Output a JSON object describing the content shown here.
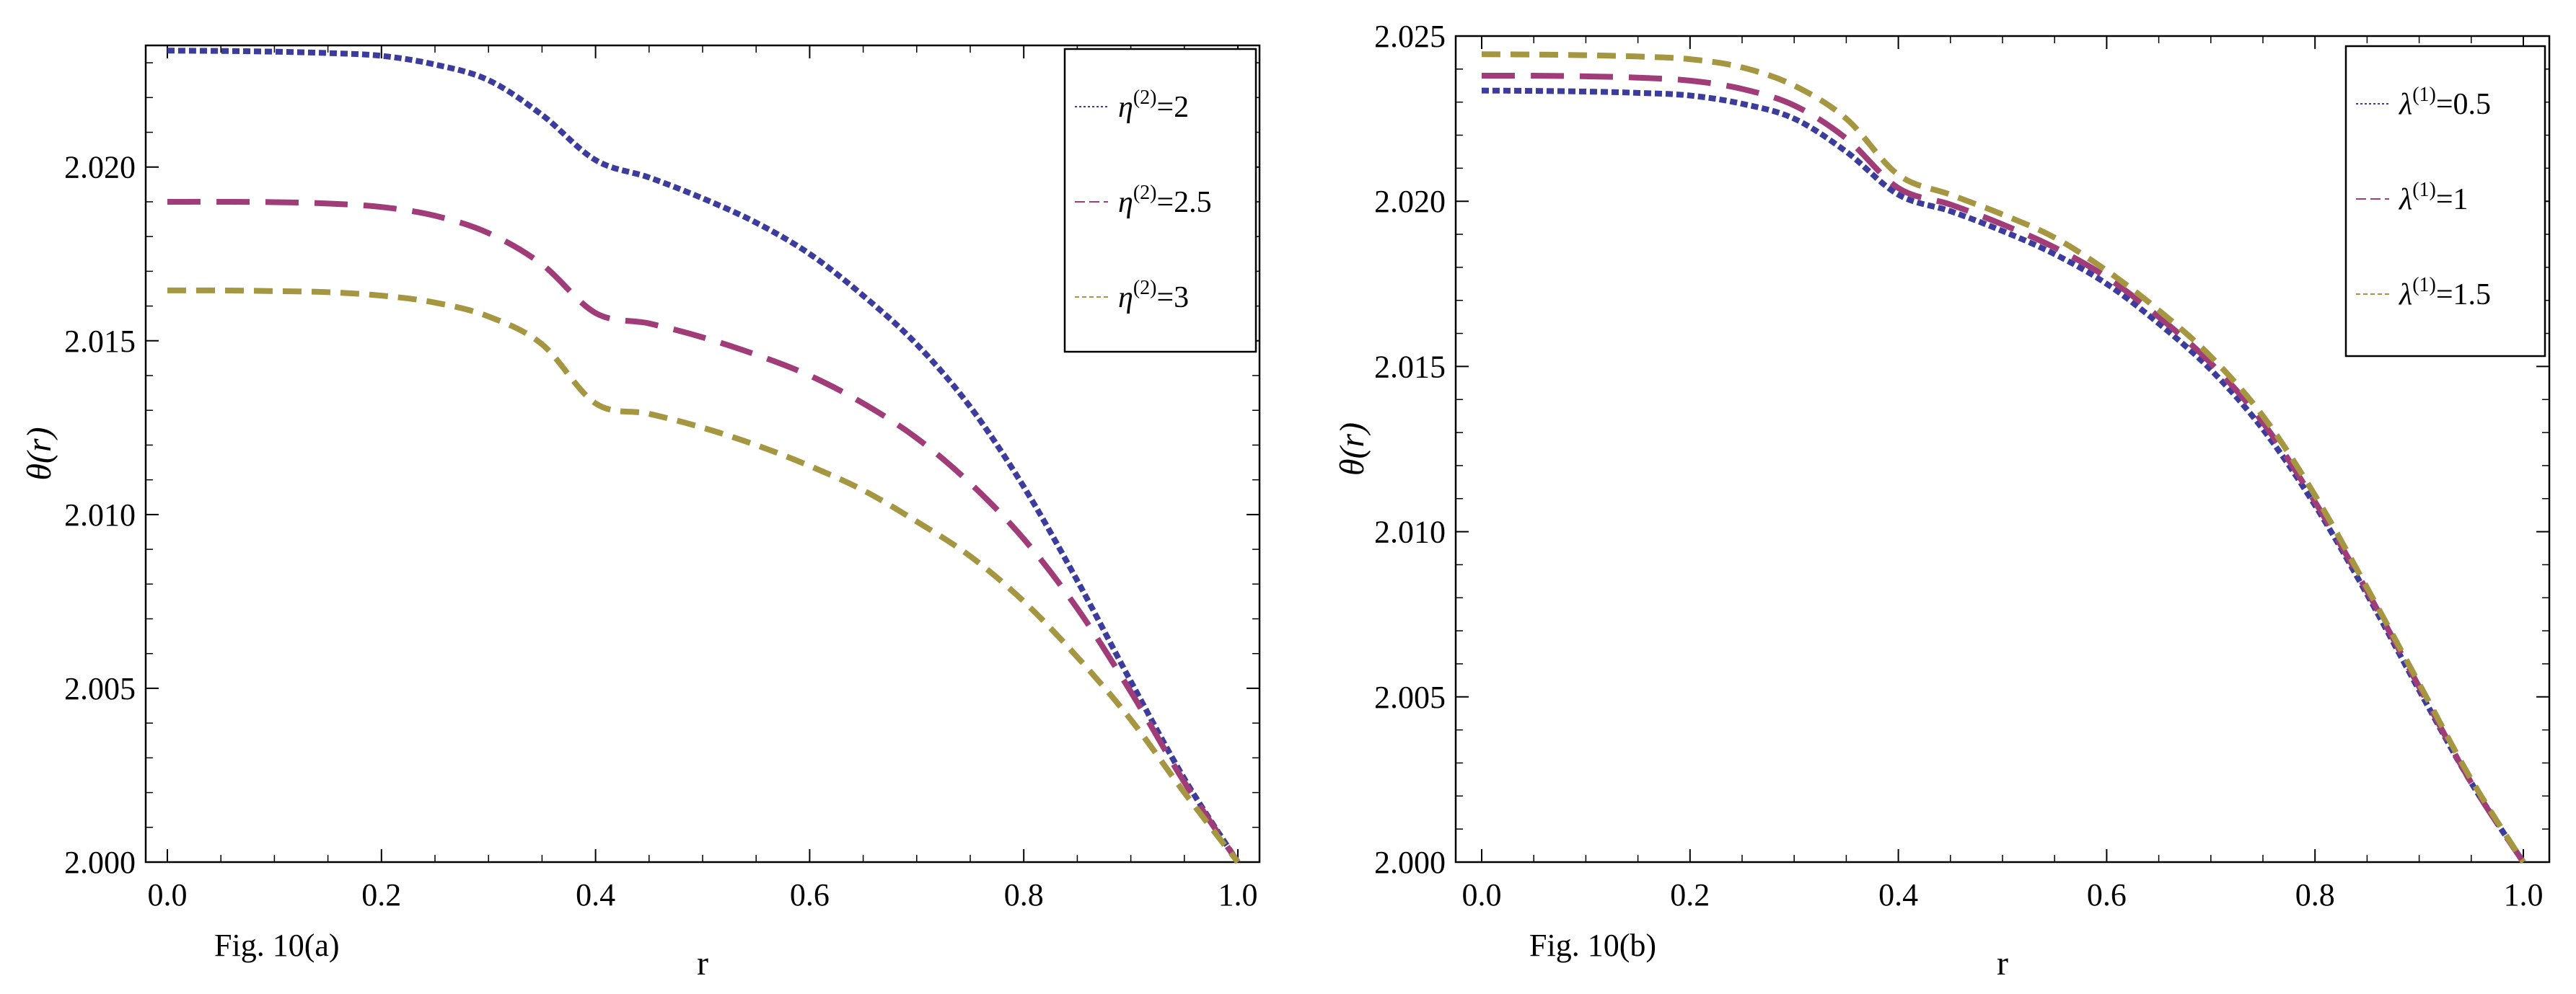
{
  "chart_data": [
    {
      "type": "line",
      "caption": "Fig. 10(a)",
      "xlabel": "r",
      "ylabel": "θ(r)",
      "xlim": [
        0,
        1
      ],
      "ylim": [
        2.0,
        2.0235
      ],
      "xticks": [
        0.0,
        0.2,
        0.4,
        0.6,
        0.8,
        1.0
      ],
      "xtick_labels": [
        "0.0",
        "0.2",
        "0.4",
        "0.6",
        "0.8",
        "1.0"
      ],
      "yticks": [
        2.0,
        2.005,
        2.01,
        2.015,
        2.02
      ],
      "ytick_labels": [
        "2.000",
        "2.005",
        "2.010",
        "2.015",
        "2.020"
      ],
      "legend_position": "top-right",
      "series": [
        {
          "name": "η(2)=2",
          "label_main": "η",
          "label_sup": "(2)",
          "label_rest": "=2",
          "color": "#3c3c9c",
          "dash": "short",
          "x": [
            0,
            0.05,
            0.1,
            0.15,
            0.2,
            0.25,
            0.3,
            0.35,
            0.4,
            0.45,
            0.5,
            0.55,
            0.6,
            0.65,
            0.7,
            0.75,
            0.8,
            0.85,
            0.9,
            0.95,
            1.0
          ],
          "y": [
            2.02335,
            2.02334,
            2.02332,
            2.02328,
            2.0232,
            2.02295,
            2.0225,
            2.0215,
            2.0202,
            2.0197,
            2.0191,
            2.0184,
            2.0175,
            2.0163,
            2.0149,
            2.0131,
            2.0108,
            2.0081,
            2.0052,
            2.0024,
            2.0
          ]
        },
        {
          "name": "η(2)=2.5",
          "label_main": "η",
          "label_sup": "(2)",
          "label_rest": "=2.5",
          "color": "#a03c78",
          "dash": "long",
          "x": [
            0,
            0.05,
            0.1,
            0.15,
            0.2,
            0.25,
            0.3,
            0.35,
            0.4,
            0.45,
            0.5,
            0.55,
            0.6,
            0.65,
            0.7,
            0.75,
            0.8,
            0.85,
            0.9,
            0.95,
            1.0
          ],
          "y": [
            2.019,
            2.019,
            2.01899,
            2.01895,
            2.01885,
            2.0186,
            2.0181,
            2.0172,
            2.0158,
            2.0155,
            2.0151,
            2.0146,
            2.014,
            2.0132,
            2.0122,
            2.0109,
            2.0093,
            2.0073,
            2.0049,
            2.0023,
            2.0
          ]
        },
        {
          "name": "η(2)=3",
          "label_main": "η",
          "label_sup": "(2)",
          "label_rest": "=3",
          "color": "#a59641",
          "dash": "medium",
          "x": [
            0,
            0.05,
            0.1,
            0.15,
            0.2,
            0.25,
            0.3,
            0.35,
            0.4,
            0.45,
            0.5,
            0.55,
            0.6,
            0.65,
            0.7,
            0.75,
            0.8,
            0.85,
            0.9,
            0.95,
            1.0
          ],
          "y": [
            2.01645,
            2.01645,
            2.01643,
            2.0164,
            2.0163,
            2.0161,
            2.0157,
            2.0149,
            2.0132,
            2.0129,
            2.0125,
            2.012,
            2.0114,
            2.0107,
            2.0098,
            2.0088,
            2.0075,
            2.0059,
            2.0041,
            2.002,
            2.0
          ]
        }
      ]
    },
    {
      "type": "line",
      "caption": "Fig. 10(b)",
      "xlabel": "r",
      "ylabel": "θ(r)",
      "xlim": [
        0,
        1
      ],
      "ylim": [
        2.0,
        2.025
      ],
      "xticks": [
        0.0,
        0.2,
        0.4,
        0.6,
        0.8,
        1.0
      ],
      "xtick_labels": [
        "0.0",
        "0.2",
        "0.4",
        "0.6",
        "0.8",
        "1.0"
      ],
      "yticks": [
        2.0,
        2.005,
        2.01,
        2.015,
        2.02,
        2.025
      ],
      "ytick_labels": [
        "2.000",
        "2.005",
        "2.010",
        "2.015",
        "2.020",
        "2.025"
      ],
      "legend_position": "top-right",
      "series": [
        {
          "name": "λ(1)=0.5",
          "label_main": "λ",
          "label_sup": "(1)",
          "label_rest": "=0.5",
          "color": "#3c3c9c",
          "dash": "short",
          "x": [
            0,
            0.05,
            0.1,
            0.15,
            0.2,
            0.25,
            0.3,
            0.35,
            0.4,
            0.45,
            0.5,
            0.55,
            0.6,
            0.65,
            0.7,
            0.75,
            0.8,
            0.85,
            0.9,
            0.95,
            1.0
          ],
          "y": [
            2.02335,
            2.02334,
            2.02332,
            2.02328,
            2.0232,
            2.02295,
            2.0225,
            2.0215,
            2.0202,
            2.0197,
            2.0191,
            2.0184,
            2.0175,
            2.0163,
            2.0149,
            2.0131,
            2.0108,
            2.0081,
            2.0052,
            2.0024,
            2.0
          ]
        },
        {
          "name": "λ(1)=1",
          "label_main": "λ",
          "label_sup": "(1)",
          "label_rest": "=1",
          "color": "#a03c78",
          "dash": "long",
          "x": [
            0,
            0.05,
            0.1,
            0.15,
            0.2,
            0.25,
            0.3,
            0.35,
            0.4,
            0.45,
            0.5,
            0.55,
            0.6,
            0.65,
            0.7,
            0.75,
            0.8,
            0.85,
            0.9,
            0.95,
            1.0
          ],
          "y": [
            2.0238,
            2.0238,
            2.02378,
            2.02374,
            2.02365,
            2.0234,
            2.0229,
            2.0219,
            2.0204,
            2.0199,
            2.0193,
            2.0186,
            2.0177,
            2.0165,
            2.0151,
            2.0133,
            2.0109,
            2.0082,
            2.0053,
            2.0024,
            2.0
          ]
        },
        {
          "name": "λ(1)=1.5",
          "label_main": "λ",
          "label_sup": "(1)",
          "label_rest": "=1.5",
          "color": "#a59641",
          "dash": "medium",
          "x": [
            0,
            0.05,
            0.1,
            0.15,
            0.2,
            0.25,
            0.3,
            0.35,
            0.4,
            0.45,
            0.5,
            0.55,
            0.6,
            0.65,
            0.7,
            0.75,
            0.8,
            0.85,
            0.9,
            0.95,
            1.0
          ],
          "y": [
            2.02445,
            2.02444,
            2.02442,
            2.02438,
            2.0243,
            2.02405,
            2.0235,
            2.0225,
            2.0208,
            2.0202,
            2.0196,
            2.0189,
            2.0179,
            2.0167,
            2.0153,
            2.0135,
            2.0111,
            2.0083,
            2.0054,
            2.0025,
            2.0
          ]
        }
      ]
    }
  ]
}
